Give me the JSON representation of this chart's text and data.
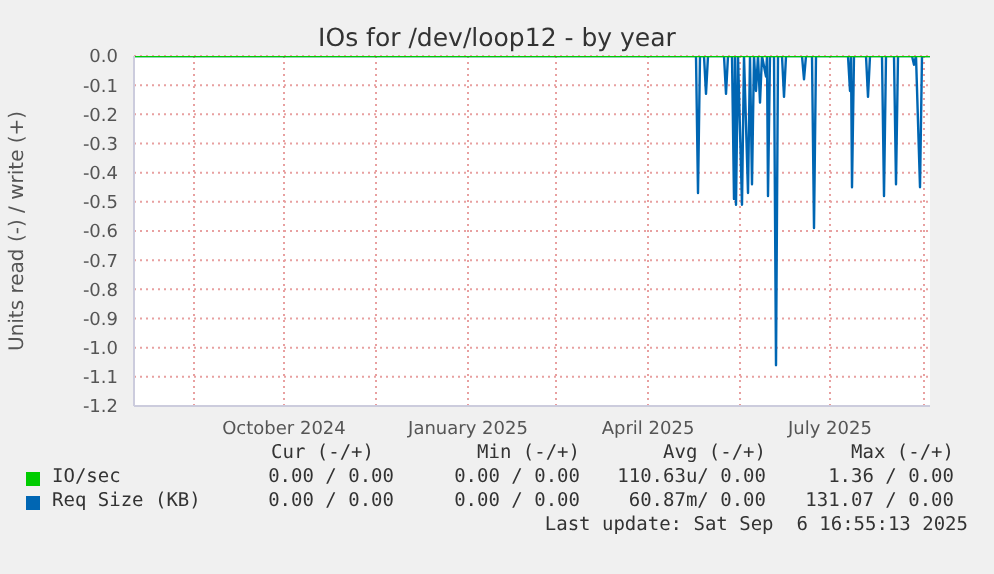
{
  "chart_data": {
    "type": "line",
    "title": "IOs for /dev/loop12 - by year",
    "ylabel": "Units read (-) / write (+)",
    "xlim": [
      "2024-08-02",
      "2025-09-04"
    ],
    "ylim": [
      -1.2,
      0
    ],
    "xticks": [
      {
        "value": "2024-09-01",
        "label": null
      },
      {
        "value": "2024-10-16",
        "label": "October 2024"
      },
      {
        "value": "2024-12-01",
        "label": null
      },
      {
        "value": "2025-01-16",
        "label": "January 2025"
      },
      {
        "value": "2025-03-01",
        "label": null
      },
      {
        "value": "2025-04-16",
        "label": "April 2025"
      },
      {
        "value": "2025-06-01",
        "label": null
      },
      {
        "value": "2025-07-16",
        "label": "July 2025"
      },
      {
        "value": "2025-09-01",
        "label": null
      }
    ],
    "yticks": [
      {
        "value": 0,
        "label": "0.0"
      },
      -0.1,
      -0.2,
      -0.3,
      -0.4,
      -0.5,
      -0.6,
      -0.7,
      -0.8,
      -0.9,
      {
        "value": -1,
        "label": "-1.0"
      },
      -1.1,
      -1.2
    ],
    "grid": true,
    "legend": "bottom",
    "marker": "none",
    "line_style": "solid",
    "series": [
      {
        "name": "Req Size (KB)",
        "color": "#0066b3",
        "x": [
          "2024-08-02",
          "2025-05-10",
          "2025-05-11",
          "2025-05-12",
          "2025-05-14",
          "2025-05-15",
          "2025-05-16",
          "2025-05-24",
          "2025-05-25",
          "2025-05-26",
          "2025-05-28",
          "2025-05-29",
          "2025-05-29T12:00",
          "2025-05-30",
          "2025-05-31",
          "2025-06-02",
          "2025-06-03",
          "2025-06-05",
          "2025-06-06",
          "2025-06-07",
          "2025-06-08",
          "2025-06-09",
          "2025-06-10",
          "2025-06-11",
          "2025-06-12",
          "2025-06-14",
          "2025-06-14T12:00",
          "2025-06-15",
          "2025-06-16",
          "2025-06-18",
          "2025-06-19",
          "2025-06-20",
          "2025-06-22",
          "2025-06-23",
          "2025-06-24",
          "2025-07-02",
          "2025-07-03",
          "2025-07-04",
          "2025-07-07",
          "2025-07-08",
          "2025-07-09",
          "2025-07-25",
          "2025-07-26",
          "2025-07-26T12:00",
          "2025-07-27",
          "2025-07-28",
          "2025-08-03",
          "2025-08-04",
          "2025-08-05",
          "2025-08-11",
          "2025-08-12",
          "2025-08-13",
          "2025-08-17",
          "2025-08-18",
          "2025-08-19",
          "2025-08-26",
          "2025-08-27",
          "2025-08-28",
          "2025-08-30",
          "2025-08-31",
          "2025-09-04"
        ],
        "values": [
          0,
          0,
          -0.47,
          0,
          0,
          -0.13,
          0,
          0,
          -0.13,
          0,
          0,
          -0.49,
          0,
          -0.51,
          0,
          -0.51,
          0,
          -0.47,
          0,
          -0.44,
          0,
          -0.12,
          0,
          -0.16,
          0,
          -0.07,
          0,
          -0.48,
          0,
          0,
          -1.06,
          0,
          0,
          -0.14,
          0,
          0,
          -0.08,
          0,
          0,
          -0.59,
          0,
          0,
          -0.12,
          0,
          -0.45,
          0,
          0,
          -0.14,
          0,
          0,
          -0.48,
          0,
          0,
          -0.44,
          0,
          0,
          -0.03,
          0,
          -0.45,
          0,
          0
        ]
      },
      {
        "name": "IO/sec",
        "color": "#00cc00",
        "x": [
          "2024-08-02",
          "2025-09-04"
        ],
        "values": [
          0,
          0
        ]
      }
    ],
    "annotations": [
      "Cur (-/+)",
      "Min (-/+)",
      "Avg (-/+)",
      "Max (-/+)",
      "0.00 / 0.00",
      "0.00 / 0.00",
      "110.63u/ 0.00",
      "1.36 / 0.00",
      "0.00 / 0.00",
      "0.00 / 0.00",
      "60.87m/ 0.00",
      "131.07 / 0.00",
      "Last update: Sat Sep  6 16:55:13 2025"
    ]
  }
}
